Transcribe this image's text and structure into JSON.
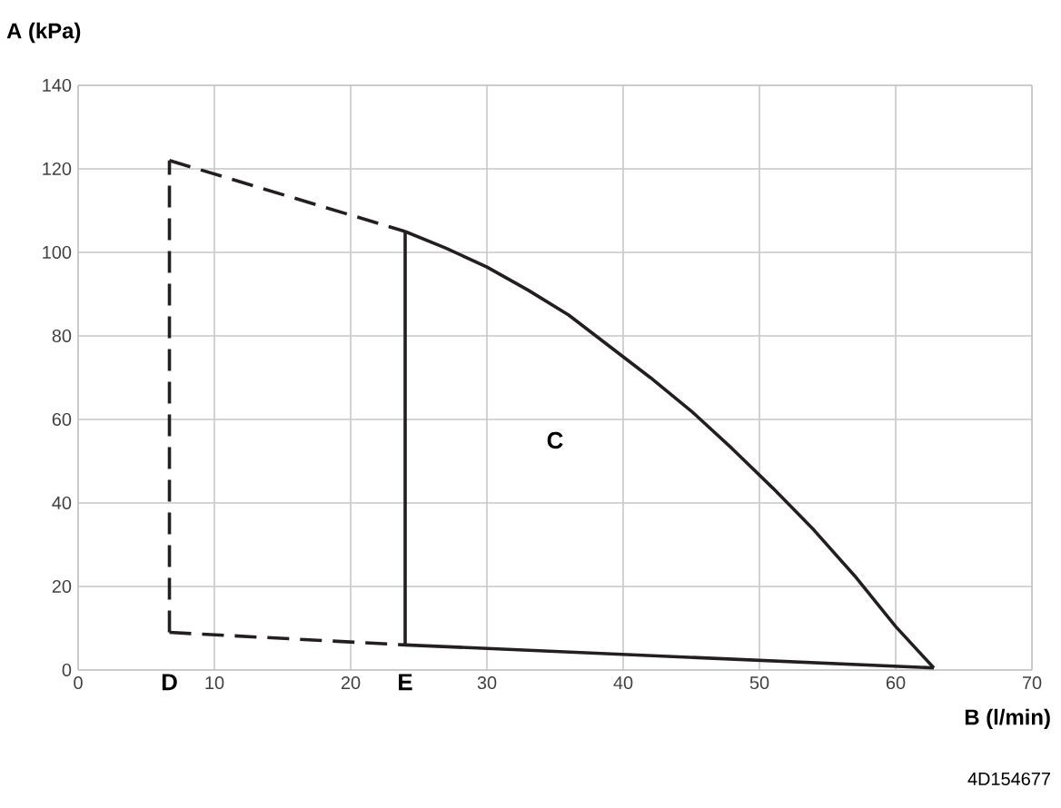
{
  "chart_data": {
    "type": "line",
    "xlabel": "B (l/min)",
    "ylabel": "A (kPa)",
    "xlim": [
      0,
      70
    ],
    "ylim": [
      0,
      140
    ],
    "xticks": [
      0,
      10,
      20,
      30,
      40,
      50,
      60,
      70
    ],
    "yticks": [
      0,
      20,
      40,
      60,
      80,
      100,
      120,
      140
    ],
    "grid": true,
    "marker": "none",
    "series": [
      {
        "color": "#231f20",
        "line_style": "dashed",
        "x": [
          6.7,
          6.7
        ],
        "values": [
          9,
          122
        ]
      },
      {
        "color": "#231f20",
        "line_style": "dashed",
        "x": [
          6.7,
          24
        ],
        "values": [
          122,
          105
        ]
      },
      {
        "color": "#231f20",
        "line_style": "dashed",
        "x": [
          6.7,
          24
        ],
        "values": [
          9,
          6
        ]
      },
      {
        "color": "#231f20",
        "line_style": "solid",
        "x": [
          24,
          24
        ],
        "values": [
          6,
          105
        ]
      },
      {
        "color": "#231f20",
        "line_style": "solid",
        "x": [
          24,
          62.8
        ],
        "values": [
          6,
          0.5
        ]
      },
      {
        "color": "#231f20",
        "line_style": "solid",
        "x": [
          24,
          27,
          30,
          33,
          36,
          39,
          42,
          45,
          48,
          51,
          54,
          57,
          60,
          62.8
        ],
        "values": [
          105,
          101,
          96.5,
          91,
          85,
          77.5,
          70,
          62,
          53,
          43.5,
          33.5,
          22.5,
          10.4,
          0.5
        ]
      }
    ],
    "annotations": [
      "C",
      "D",
      "E",
      "4D154677"
    ]
  }
}
